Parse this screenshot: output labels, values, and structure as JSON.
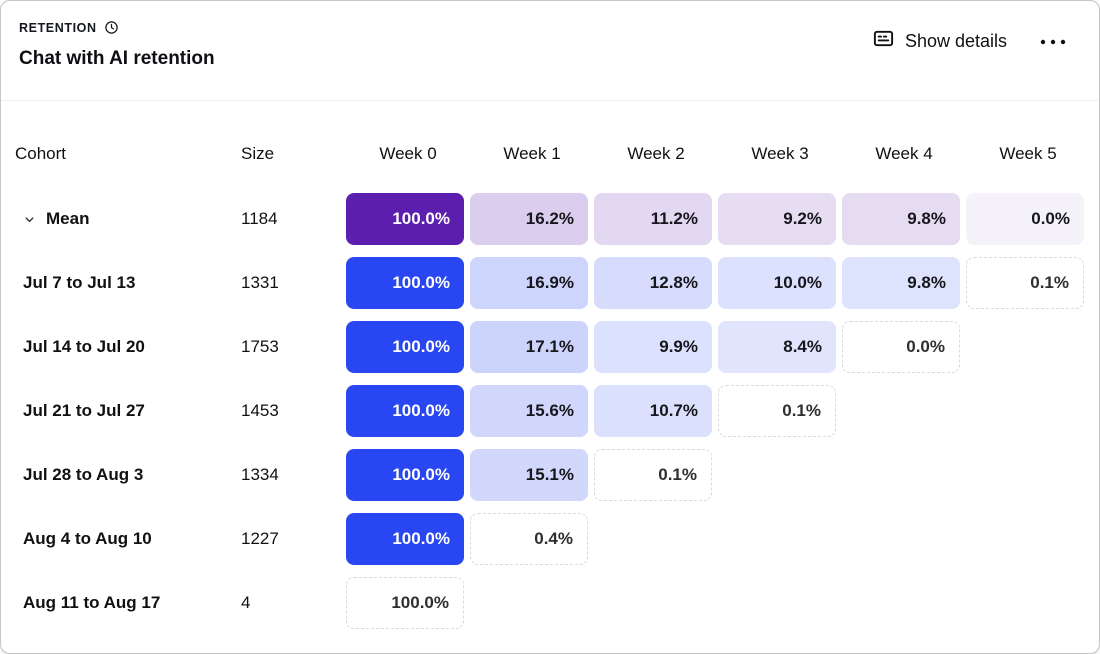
{
  "header": {
    "kicker": "RETENTION",
    "title": "Chat with AI retention",
    "show_details": "Show details"
  },
  "icons": {
    "clock": "clock-icon",
    "show_details": "detail-card-icon",
    "more": "ellipsis-icon",
    "expand": "chevron-down-icon"
  },
  "colors": {
    "mean_scheme": "#5B1EAE",
    "cohort_scheme": "#2847F3",
    "dashed_border": "#dadada",
    "card_border": "#c6c6c6"
  },
  "retention": {
    "columns": [
      "Cohort",
      "Size",
      "Week 0",
      "Week 1",
      "Week 2",
      "Week 3",
      "Week 4",
      "Week 5"
    ],
    "rows": [
      {
        "label": "Mean",
        "size": "1184",
        "scheme": "mean",
        "expandable": true,
        "cells": [
          {
            "display": "100.0%",
            "value": 100.0
          },
          {
            "display": "16.2%",
            "value": 16.2
          },
          {
            "display": "11.2%",
            "value": 11.2
          },
          {
            "display": "9.2%",
            "value": 9.2
          },
          {
            "display": "9.8%",
            "value": 9.8
          },
          {
            "display": "0.0%",
            "value": 0.0
          }
        ]
      },
      {
        "label": "Jul 7 to Jul 13",
        "size": "1331",
        "scheme": "cohort",
        "cells": [
          {
            "display": "100.0%",
            "value": 100.0
          },
          {
            "display": "16.9%",
            "value": 16.9
          },
          {
            "display": "12.8%",
            "value": 12.8
          },
          {
            "display": "10.0%",
            "value": 10.0
          },
          {
            "display": "9.8%",
            "value": 9.8
          },
          {
            "display": "0.1%",
            "value": 0.1,
            "dashed": true
          }
        ]
      },
      {
        "label": "Jul 14 to Jul 20",
        "size": "1753",
        "scheme": "cohort",
        "cells": [
          {
            "display": "100.0%",
            "value": 100.0
          },
          {
            "display": "17.1%",
            "value": 17.1
          },
          {
            "display": "9.9%",
            "value": 9.9
          },
          {
            "display": "8.4%",
            "value": 8.4
          },
          {
            "display": "0.0%",
            "value": 0.0,
            "dashed": true
          }
        ]
      },
      {
        "label": "Jul 21 to Jul 27",
        "size": "1453",
        "scheme": "cohort",
        "cells": [
          {
            "display": "100.0%",
            "value": 100.0
          },
          {
            "display": "15.6%",
            "value": 15.6
          },
          {
            "display": "10.7%",
            "value": 10.7
          },
          {
            "display": "0.1%",
            "value": 0.1,
            "dashed": true
          }
        ]
      },
      {
        "label": "Jul 28 to Aug 3",
        "size": "1334",
        "scheme": "cohort",
        "cells": [
          {
            "display": "100.0%",
            "value": 100.0
          },
          {
            "display": "15.1%",
            "value": 15.1
          },
          {
            "display": "0.1%",
            "value": 0.1,
            "dashed": true
          }
        ]
      },
      {
        "label": "Aug 4 to Aug 10",
        "size": "1227",
        "scheme": "cohort",
        "cells": [
          {
            "display": "100.0%",
            "value": 100.0
          },
          {
            "display": "0.4%",
            "value": 0.4,
            "dashed": true
          }
        ]
      },
      {
        "label": "Aug 11 to Aug 17",
        "size": "4",
        "scheme": "cohort",
        "cells": [
          {
            "display": "100.0%",
            "value": 100.0,
            "dashed": true
          }
        ]
      }
    ]
  }
}
